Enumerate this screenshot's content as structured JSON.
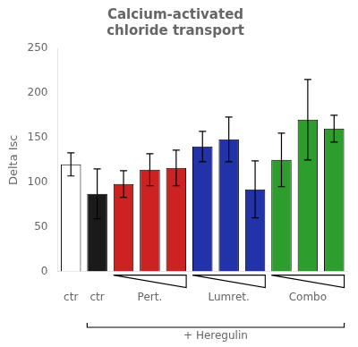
{
  "chart_data": {
    "type": "bar",
    "title": "Calcium-activated\nchloride transport",
    "ylabel": "Delta Isc",
    "categories": [
      "ctr",
      "ctr",
      null,
      "Pert.",
      null,
      null,
      "Lumret.",
      null,
      null,
      "Combo",
      null
    ],
    "values": [
      120,
      87,
      98,
      114,
      116,
      140,
      148,
      92,
      125,
      170,
      160
    ],
    "errors": [
      13,
      28,
      15,
      18,
      20,
      17,
      25,
      32,
      30,
      45,
      15
    ],
    "colors": [
      "#ffffff",
      "#1a1a1a",
      "#cc2222",
      "#cc2222",
      "#cc2222",
      "#2233aa",
      "#2233aa",
      "#2233aa",
      "#2d9e2d",
      "#2d9e2d",
      "#2d9e2d"
    ],
    "ylim": [
      0,
      250
    ],
    "yticks": [
      0,
      50,
      100,
      150,
      200,
      250
    ],
    "grid": false,
    "annotations": [
      "+ Heregulin"
    ]
  }
}
